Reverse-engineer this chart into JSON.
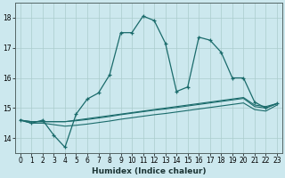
{
  "xlabel": "Humidex (Indice chaleur)",
  "xlim": [
    -0.5,
    23.5
  ],
  "ylim": [
    13.5,
    18.5
  ],
  "yticks": [
    14,
    15,
    16,
    17,
    18
  ],
  "xticks": [
    0,
    1,
    2,
    3,
    4,
    5,
    6,
    7,
    8,
    9,
    10,
    11,
    12,
    13,
    14,
    15,
    16,
    17,
    18,
    19,
    20,
    21,
    22,
    23
  ],
  "background_color": "#cce8ee",
  "grid_color": "#aacccc",
  "line_color": "#1a6b6b",
  "series_main": [
    14.6,
    14.5,
    14.6,
    14.1,
    13.7,
    14.8,
    15.3,
    15.5,
    16.1,
    17.5,
    17.5,
    18.05,
    17.9,
    17.15,
    15.55,
    15.7,
    17.35,
    17.25,
    16.85,
    16.0,
    16.0,
    15.2,
    15.0,
    15.15
  ],
  "line_top": [
    14.6,
    14.55,
    14.55,
    14.55,
    14.55,
    14.6,
    14.65,
    14.7,
    14.75,
    14.8,
    14.85,
    14.9,
    14.95,
    15.0,
    15.05,
    15.1,
    15.15,
    15.2,
    15.25,
    15.3,
    15.35,
    15.1,
    15.05,
    15.15
  ],
  "line_mid": [
    14.6,
    14.55,
    14.55,
    14.55,
    14.55,
    14.58,
    14.62,
    14.67,
    14.72,
    14.78,
    14.83,
    14.88,
    14.93,
    14.97,
    15.02,
    15.07,
    15.12,
    15.17,
    15.22,
    15.27,
    15.32,
    15.05,
    15.0,
    15.15
  ],
  "line_bot": [
    14.6,
    14.5,
    14.5,
    14.45,
    14.4,
    14.43,
    14.47,
    14.52,
    14.57,
    14.63,
    14.68,
    14.73,
    14.78,
    14.82,
    14.87,
    14.92,
    14.97,
    15.02,
    15.07,
    15.12,
    15.17,
    14.95,
    14.9,
    15.1
  ]
}
